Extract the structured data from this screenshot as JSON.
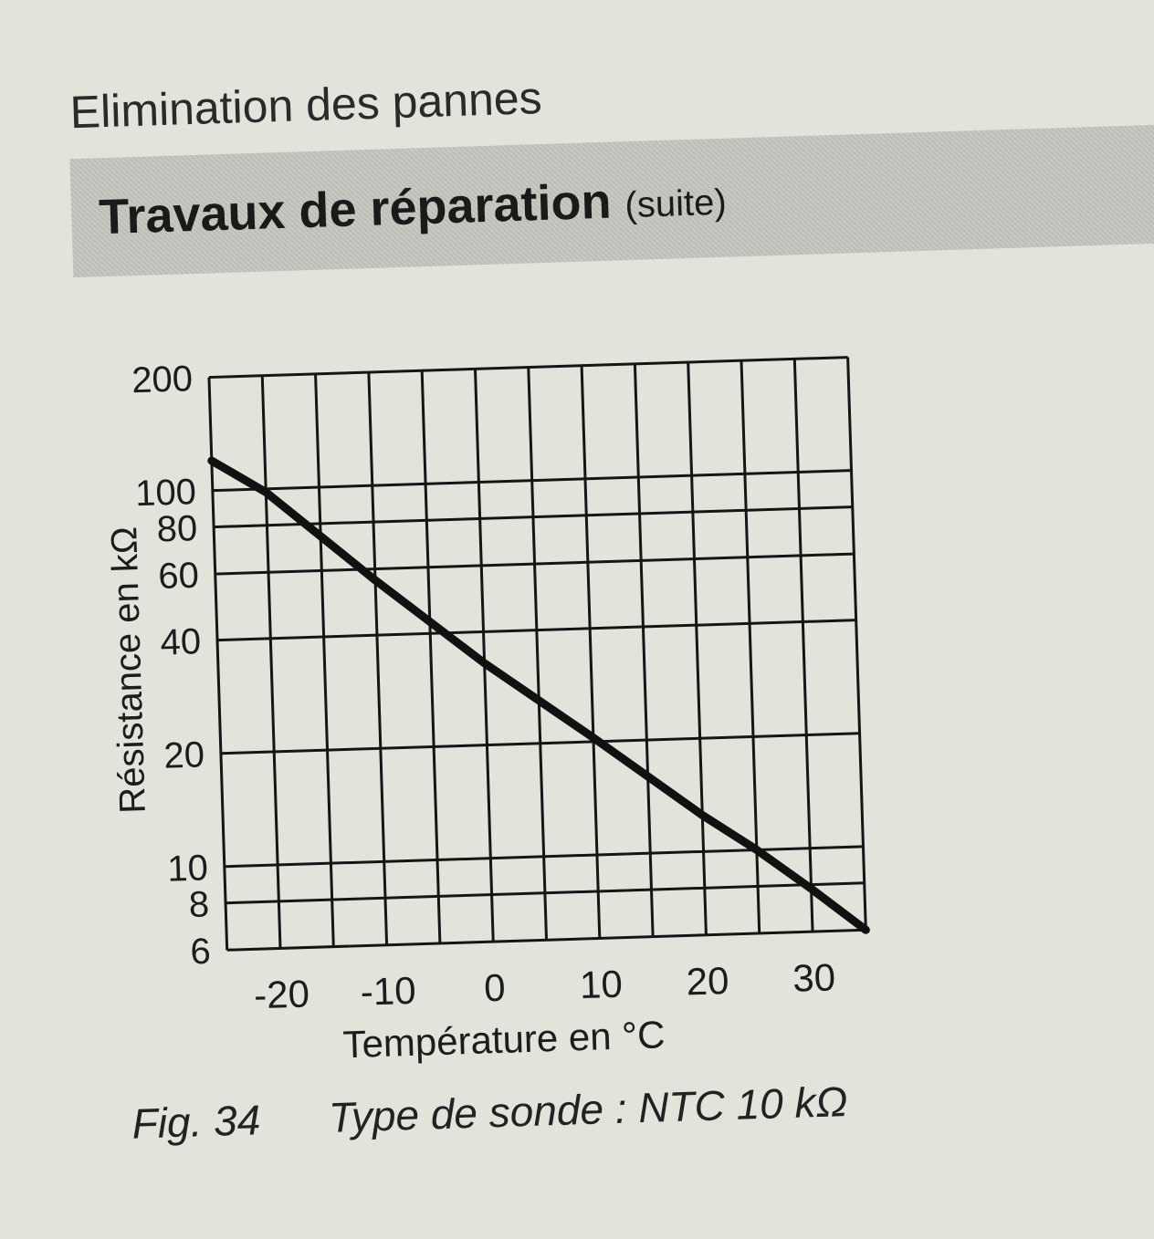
{
  "header": {
    "title": "Elimination des pannes",
    "section": "Travaux de réparation",
    "section_suffix": "(suite)"
  },
  "chart_data": {
    "type": "line",
    "title": "",
    "xlabel": "Température en °C",
    "ylabel": "Résistance en kΩ",
    "x_ticks": [
      "-20",
      "-10",
      "0",
      "10",
      "20",
      "30"
    ],
    "x_tick_values": [
      -20,
      -10,
      0,
      10,
      20,
      30
    ],
    "y_ticks": [
      "200",
      "100",
      "80",
      "60",
      "40",
      "20",
      "10",
      "8",
      "6"
    ],
    "y_tick_values": [
      200,
      100,
      80,
      60,
      40,
      20,
      10,
      8,
      6
    ],
    "xlim": [
      -25,
      35
    ],
    "ylim": [
      6,
      200
    ],
    "y_scale": "log",
    "x_grid_step": 5,
    "grid": true,
    "line_color": "#111111",
    "series": [
      {
        "x": [
          -25,
          -20,
          -10,
          0,
          10,
          20,
          25,
          30,
          35
        ],
        "y": [
          120,
          98,
          56,
          33,
          20.5,
          12.5,
          10,
          7.8,
          6
        ]
      }
    ]
  },
  "caption": {
    "label": "Fig. 34",
    "text": "Type de sonde : NTC 10 kΩ"
  }
}
